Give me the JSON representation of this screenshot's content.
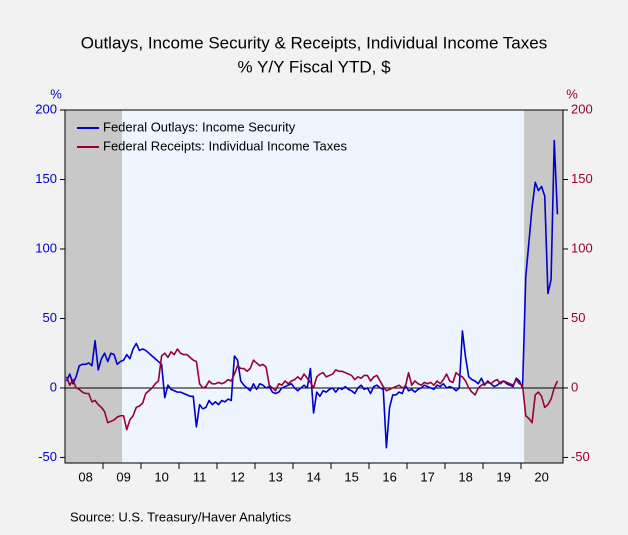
{
  "chart_data": {
    "type": "line",
    "title": "Outlays, Income Security & Receipts, Individual Income Taxes",
    "subtitle": "% Y/Y   Fiscal YTD, $",
    "y_axis_label": "%",
    "y2_axis_label": "%",
    "source": "Source:  U.S. Treasury/Haver Analytics",
    "categories": [
      null,
      null,
      null,
      null,
      null,
      null,
      "08",
      null,
      null,
      null,
      null,
      null,
      null,
      null,
      null,
      null,
      null,
      null,
      "09",
      null,
      null,
      null,
      null,
      null,
      null,
      null,
      null,
      null,
      null,
      null,
      "10",
      null,
      null,
      null,
      null,
      null,
      null,
      null,
      null,
      null,
      null,
      null,
      "11",
      null,
      null,
      null,
      null,
      null,
      null,
      null,
      null,
      null,
      null,
      null,
      "12",
      null,
      null,
      null,
      null,
      null,
      null,
      null,
      null,
      null,
      null,
      null,
      "13",
      null,
      null,
      null,
      null,
      null,
      null,
      null,
      null,
      null,
      null,
      null,
      "14",
      null,
      null,
      null,
      null,
      null,
      null,
      null,
      null,
      null,
      null,
      null,
      "15",
      null,
      null,
      null,
      null,
      null,
      null,
      null,
      null,
      null,
      null,
      null,
      "16",
      null,
      null,
      null,
      null,
      null,
      null,
      null,
      null,
      null,
      null,
      null,
      "17",
      null,
      null,
      null,
      null,
      null,
      null,
      null,
      null,
      null,
      null,
      null,
      "18",
      null,
      null,
      null,
      null,
      null,
      null,
      null,
      null,
      null,
      null,
      null,
      "19",
      null,
      null,
      null,
      null,
      null,
      null,
      null,
      null,
      null,
      null,
      null,
      "20",
      null,
      null,
      null,
      null,
      null
    ],
    "ylim": [
      -54,
      200
    ],
    "yticks": [
      -50,
      0,
      50,
      100,
      150,
      200
    ],
    "y2lim": [
      -54,
      200
    ],
    "y2ticks": [
      -50,
      0,
      50,
      100,
      150,
      200
    ],
    "shaded_ranges": [
      [
        0,
        17
      ],
      [
        145,
        156
      ]
    ],
    "legend": "upper left",
    "series": [
      {
        "name": "Federal Outlays: Income Security",
        "color": "#0000cc",
        "values": [
          5,
          10,
          3,
          8,
          16,
          17,
          17,
          18,
          16,
          34,
          13,
          21,
          25,
          19,
          25,
          24,
          17,
          19,
          20,
          24,
          21,
          28,
          32,
          27,
          28,
          27,
          25,
          23,
          21,
          19,
          17,
          -7,
          2,
          -1,
          -2,
          -3,
          -3,
          -4,
          -5,
          -6,
          -6,
          -28,
          -12,
          -15,
          -14,
          -9,
          -12,
          -10,
          -12,
          -9,
          -10,
          -8,
          -9,
          23,
          20,
          5,
          2,
          0,
          -2,
          3,
          -1,
          3,
          2,
          0,
          1,
          -3,
          -4,
          -3,
          0,
          1,
          2,
          3,
          0,
          -2,
          0,
          2,
          0,
          14,
          -18,
          -3,
          -6,
          -2,
          -3,
          -1,
          0,
          -3,
          0,
          -1,
          1,
          -1,
          -2,
          -4,
          0,
          2,
          -1,
          0,
          -4,
          1,
          2,
          0,
          -1,
          -43,
          -14,
          -5,
          -5,
          -3,
          -4,
          2,
          -2,
          -1,
          -3,
          -1,
          0,
          2,
          1,
          0,
          -1,
          2,
          1,
          3,
          0,
          1,
          0,
          -2,
          0,
          41,
          22,
          8,
          6,
          5,
          3,
          7,
          2,
          5,
          3,
          1,
          2,
          4,
          5,
          3,
          2,
          1,
          7,
          5,
          0,
          80,
          105,
          130,
          148,
          142,
          145,
          138,
          68,
          78,
          178,
          125
        ]
      },
      {
        "name": "Federal Receipts: Individual Income Taxes",
        "color": "#990033",
        "axis": "y2",
        "values": [
          8,
          2,
          6,
          0,
          -1,
          -3,
          -4,
          -4,
          -10,
          -9,
          -12,
          -14,
          -17,
          -25,
          -24,
          -23,
          -21,
          -20,
          -20,
          -30,
          -23,
          -20,
          -14,
          -13,
          -11,
          -4,
          -2,
          0,
          3,
          5,
          23,
          25,
          22,
          26,
          24,
          28,
          25,
          24,
          24,
          22,
          20,
          19,
          3,
          0,
          1,
          5,
          3,
          3,
          4,
          3,
          4,
          6,
          5,
          10,
          16,
          14,
          14,
          12,
          14,
          20,
          18,
          16,
          17,
          15,
          2,
          0,
          -2,
          3,
          2,
          5,
          3,
          5,
          6,
          8,
          6,
          10,
          7,
          4,
          0,
          8,
          10,
          11,
          8,
          9,
          10,
          13,
          12,
          12,
          11,
          10,
          9,
          6,
          8,
          7,
          9,
          9,
          5,
          8,
          9,
          5,
          1,
          -2,
          -1,
          0,
          1,
          2,
          0,
          1,
          11,
          2,
          5,
          3,
          2,
          4,
          3,
          4,
          2,
          5,
          3,
          6,
          10,
          5,
          4,
          11,
          9,
          8,
          5,
          0,
          -3,
          -5,
          0,
          2,
          3,
          4,
          3,
          5,
          6,
          3,
          5,
          4,
          3,
          2,
          6,
          3,
          2,
          -20,
          -22,
          -25,
          -5,
          -3,
          -6,
          -14,
          -12,
          -8,
          0,
          5
        ]
      }
    ]
  }
}
